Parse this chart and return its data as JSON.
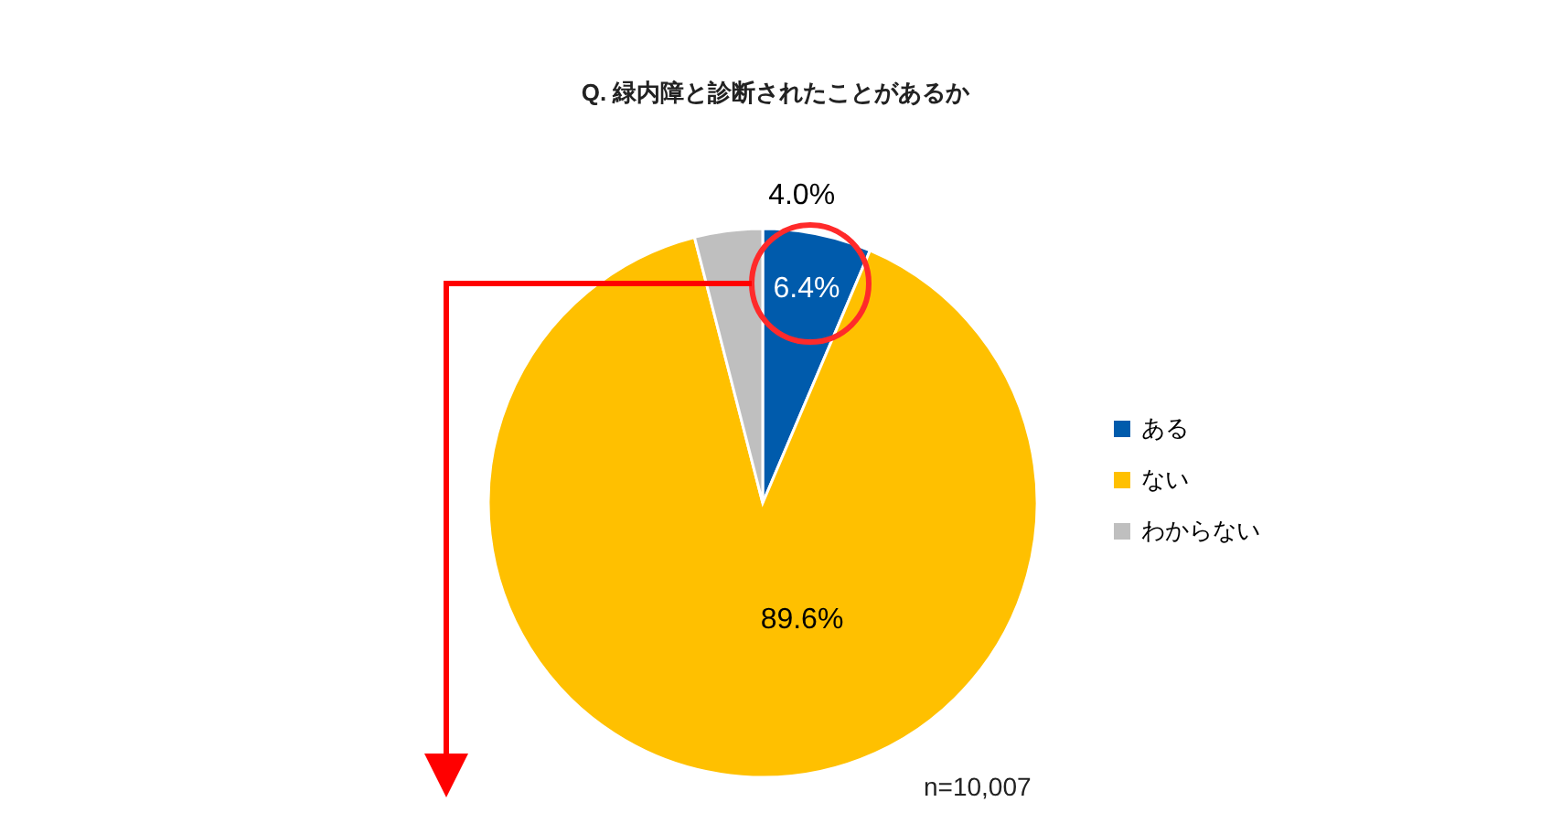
{
  "chart_data": {
    "type": "pie",
    "title": "Q.  緑内障と診断されたことがあるか",
    "categories": [
      "ある",
      "ない",
      "わからない"
    ],
    "values": [
      6.4,
      89.6,
      4.0
    ],
    "colors": [
      "#005bac",
      "#ffc000",
      "#bfbfbf"
    ],
    "value_labels": [
      "6.4%",
      "89.6%",
      "4.0%"
    ],
    "legend": "right",
    "annotations": [
      "n=10,007"
    ]
  }
}
